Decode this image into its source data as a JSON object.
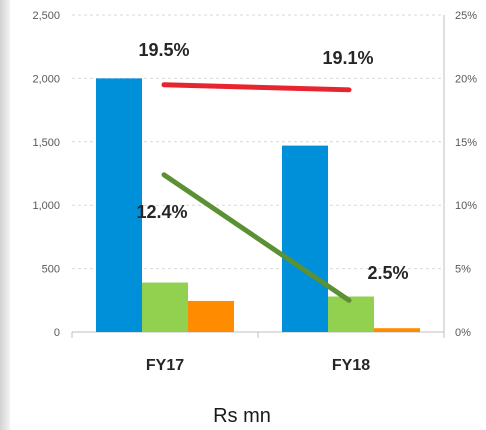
{
  "chart_data": {
    "type": "bar",
    "categories": [
      "FY17",
      "FY18"
    ],
    "bar_series": [
      {
        "values": [
          2000,
          1470
        ],
        "color": "#0090d9"
      },
      {
        "values": [
          390,
          280
        ],
        "color": "#92d050"
      },
      {
        "values": [
          245,
          30
        ],
        "color": "#ff8c00"
      }
    ],
    "line_series": [
      {
        "values": [
          19.5,
          19.1
        ],
        "labels": [
          "19.5%",
          "19.1%"
        ],
        "color": "#e8242e"
      },
      {
        "values": [
          12.4,
          2.5
        ],
        "labels": [
          "12.4%",
          "2.5%"
        ],
        "color": "#5b9034"
      }
    ],
    "y_left": {
      "min": 0,
      "max": 2500,
      "ticks": [
        "0",
        "500",
        "1,000",
        "1,500",
        "2,000",
        "2,500"
      ]
    },
    "y_right": {
      "min": 0,
      "max": 25,
      "ticks": [
        "0%",
        "5%",
        "10%",
        "15%",
        "20%",
        "25%"
      ]
    },
    "grid": "horizontal dashed",
    "unit_label": "Rs mn"
  }
}
